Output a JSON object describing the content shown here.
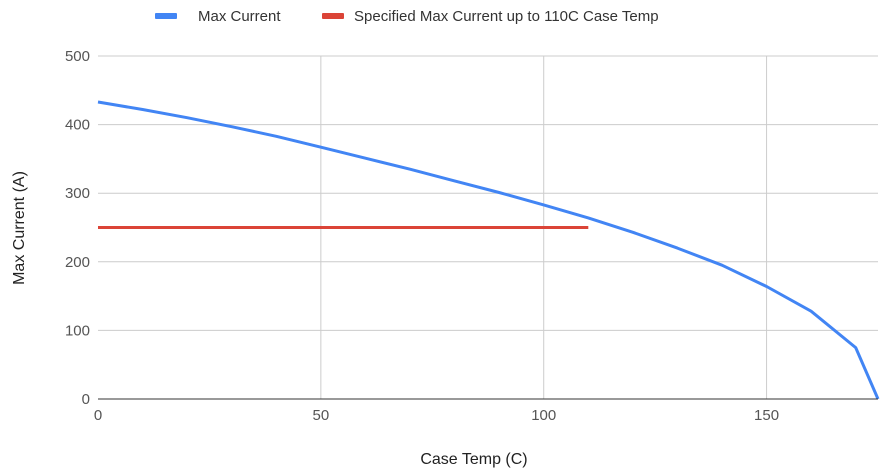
{
  "chart_data": {
    "type": "line",
    "title": "",
    "xlabel": "Case Temp (C)",
    "ylabel": "Max Current (A)",
    "xlim": [
      0,
      175
    ],
    "ylim": [
      0,
      500
    ],
    "x_ticks": [
      0,
      50,
      100,
      150
    ],
    "y_ticks": [
      0,
      100,
      200,
      300,
      400,
      500
    ],
    "grid": true,
    "legend_position": "top",
    "series": [
      {
        "name": "Max Current",
        "color": "#4285f4",
        "points": [
          [
            0,
            433
          ],
          [
            10,
            422
          ],
          [
            20,
            410
          ],
          [
            30,
            397
          ],
          [
            40,
            383
          ],
          [
            50,
            367
          ],
          [
            60,
            351
          ],
          [
            70,
            335
          ],
          [
            80,
            318
          ],
          [
            90,
            301
          ],
          [
            100,
            283
          ],
          [
            110,
            264
          ],
          [
            120,
            243
          ],
          [
            130,
            220
          ],
          [
            140,
            195
          ],
          [
            150,
            164
          ],
          [
            160,
            128
          ],
          [
            170,
            75
          ],
          [
            175,
            0
          ]
        ]
      },
      {
        "name": "Specified Max Current up to 110C Case Temp",
        "color": "#db4437",
        "points": [
          [
            0,
            250
          ],
          [
            110,
            250
          ]
        ]
      }
    ]
  }
}
